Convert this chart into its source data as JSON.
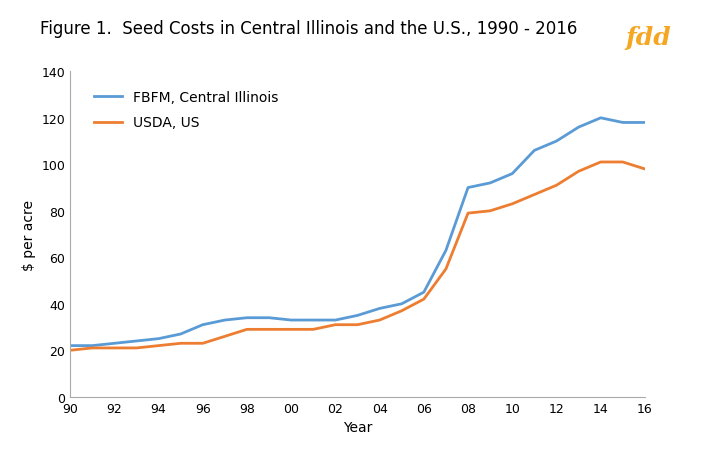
{
  "title": "Figure 1.  Seed Costs in Central Illinois and the U.S., 1990 - 2016",
  "xlabel": "Year",
  "ylabel": "$ per acre",
  "years": [
    1990,
    1991,
    1992,
    1993,
    1994,
    1995,
    1996,
    1997,
    1998,
    1999,
    2000,
    2001,
    2002,
    2003,
    2004,
    2005,
    2006,
    2007,
    2008,
    2009,
    2010,
    2011,
    2012,
    2013,
    2014,
    2015,
    2016
  ],
  "fbfm": [
    22,
    22,
    23,
    24,
    25,
    27,
    31,
    33,
    34,
    34,
    33,
    33,
    33,
    35,
    38,
    40,
    45,
    63,
    90,
    92,
    96,
    106,
    110,
    116,
    120,
    118,
    118
  ],
  "usda": [
    20,
    21,
    21,
    21,
    22,
    23,
    23,
    26,
    29,
    29,
    29,
    29,
    31,
    31,
    33,
    37,
    42,
    55,
    79,
    80,
    83,
    87,
    91,
    97,
    101,
    101,
    98
  ],
  "fbfm_color": "#5b9bd5",
  "usda_color": "#ed7d31",
  "ylim": [
    0,
    140
  ],
  "yticks": [
    0,
    20,
    40,
    60,
    80,
    100,
    120,
    140
  ],
  "xtick_labels": [
    "90",
    "92",
    "94",
    "96",
    "98",
    "00",
    "02",
    "04",
    "06",
    "08",
    "10",
    "12",
    "14",
    "16"
  ],
  "xtick_positions": [
    1990,
    1992,
    1994,
    1996,
    1998,
    2000,
    2002,
    2004,
    2006,
    2008,
    2010,
    2012,
    2014,
    2016
  ],
  "fdd_bg_color": "#2e3560",
  "fdd_text_color": "#f5a623",
  "legend_fbfm": "FBFM, Central Illinois",
  "legend_usda": "USDA, US",
  "background_color": "#ffffff",
  "line_width": 2.0,
  "title_fontsize": 12,
  "tick_fontsize": 9,
  "label_fontsize": 10,
  "legend_fontsize": 10
}
